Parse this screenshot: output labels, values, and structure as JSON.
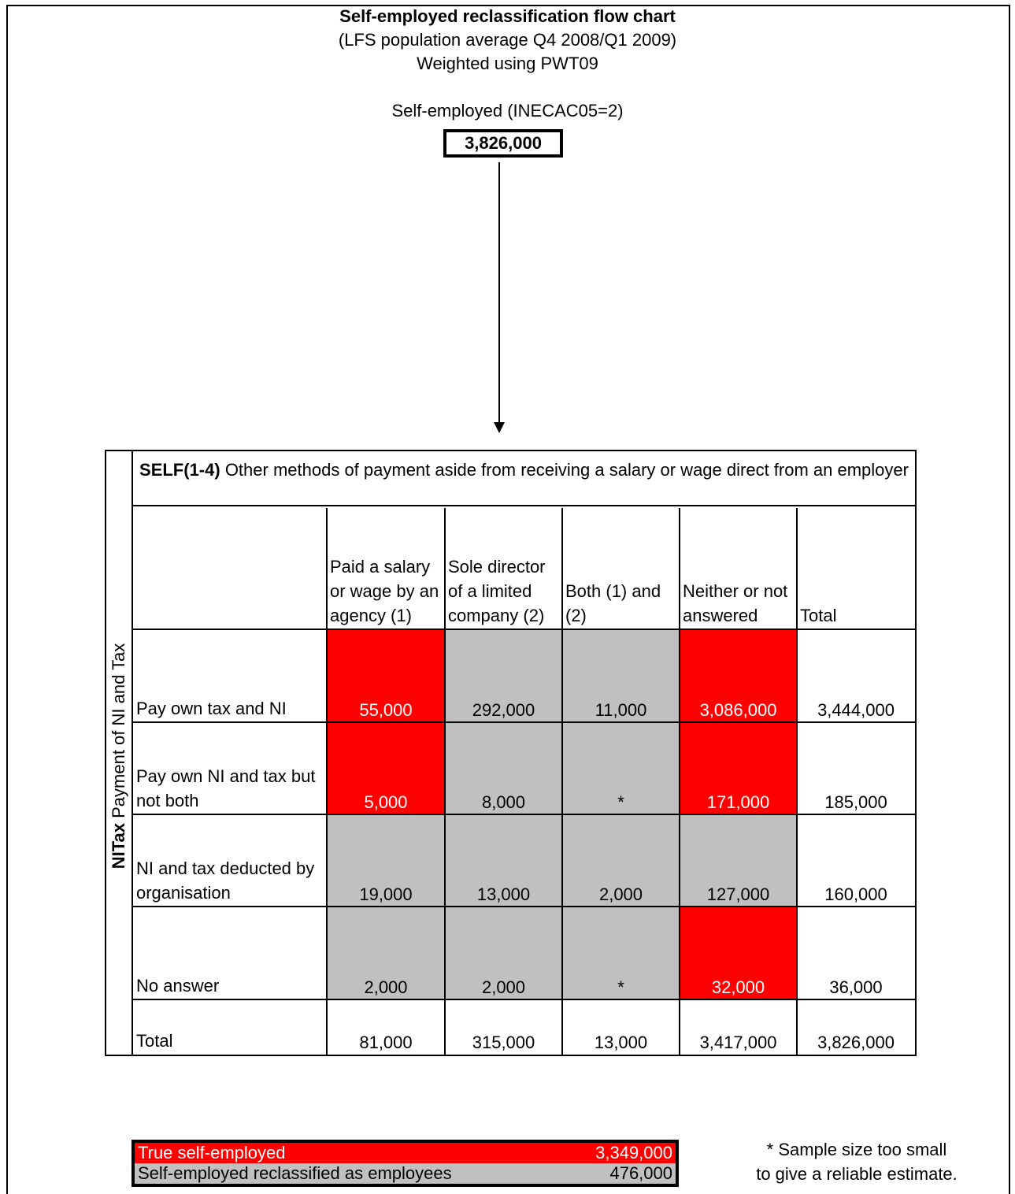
{
  "header": {
    "title": "Self-employed reclassification flow chart",
    "subtitle1": "(LFS population average Q4 2008/Q1 2009)",
    "subtitle2": "Weighted using PWT09"
  },
  "root": {
    "label": "Self-employed (INECAC05=2)",
    "value": "3,826,000"
  },
  "table": {
    "side_label_bold": "NITax",
    "side_label": " Payment of NI and Tax",
    "header_bold": "SELF(1-4)",
    "header_text": " Other methods of payment aside from receiving a salary or wage direct from an employer",
    "columns": [
      "Paid a salary or wage by an agency (1)",
      "Sole director of a limited company (2)",
      "Both (1) and (2)",
      "Neither or not answered",
      "Total"
    ],
    "rows": [
      {
        "label": "Pay own tax and NI",
        "values": [
          "55,000",
          "292,000",
          "11,000",
          "3,086,000",
          "3,444,000"
        ]
      },
      {
        "label": "Pay own NI and tax but not both",
        "values": [
          "5,000",
          "8,000",
          "*",
          "171,000",
          "185,000"
        ]
      },
      {
        "label": "NI and tax deducted by organisation",
        "values": [
          "19,000",
          "13,000",
          "2,000",
          "127,000",
          "160,000"
        ]
      },
      {
        "label": "No answer",
        "values": [
          "2,000",
          "2,000",
          "*",
          "32,000",
          "36,000"
        ]
      },
      {
        "label": "Total",
        "values": [
          "81,000",
          "315,000",
          "13,000",
          "3,417,000",
          "3,826,000"
        ]
      }
    ]
  },
  "legend": {
    "true_label": "True self-employed",
    "true_value": "3,349,000",
    "true_color": "#ff0000",
    "reclass_label": "Self-employed reclassified as employees",
    "reclass_value": "476,000",
    "reclass_color": "#c0c0c0"
  },
  "note": {
    "line1": "* Sample size too small",
    "line2": "to give a reliable estimate."
  }
}
